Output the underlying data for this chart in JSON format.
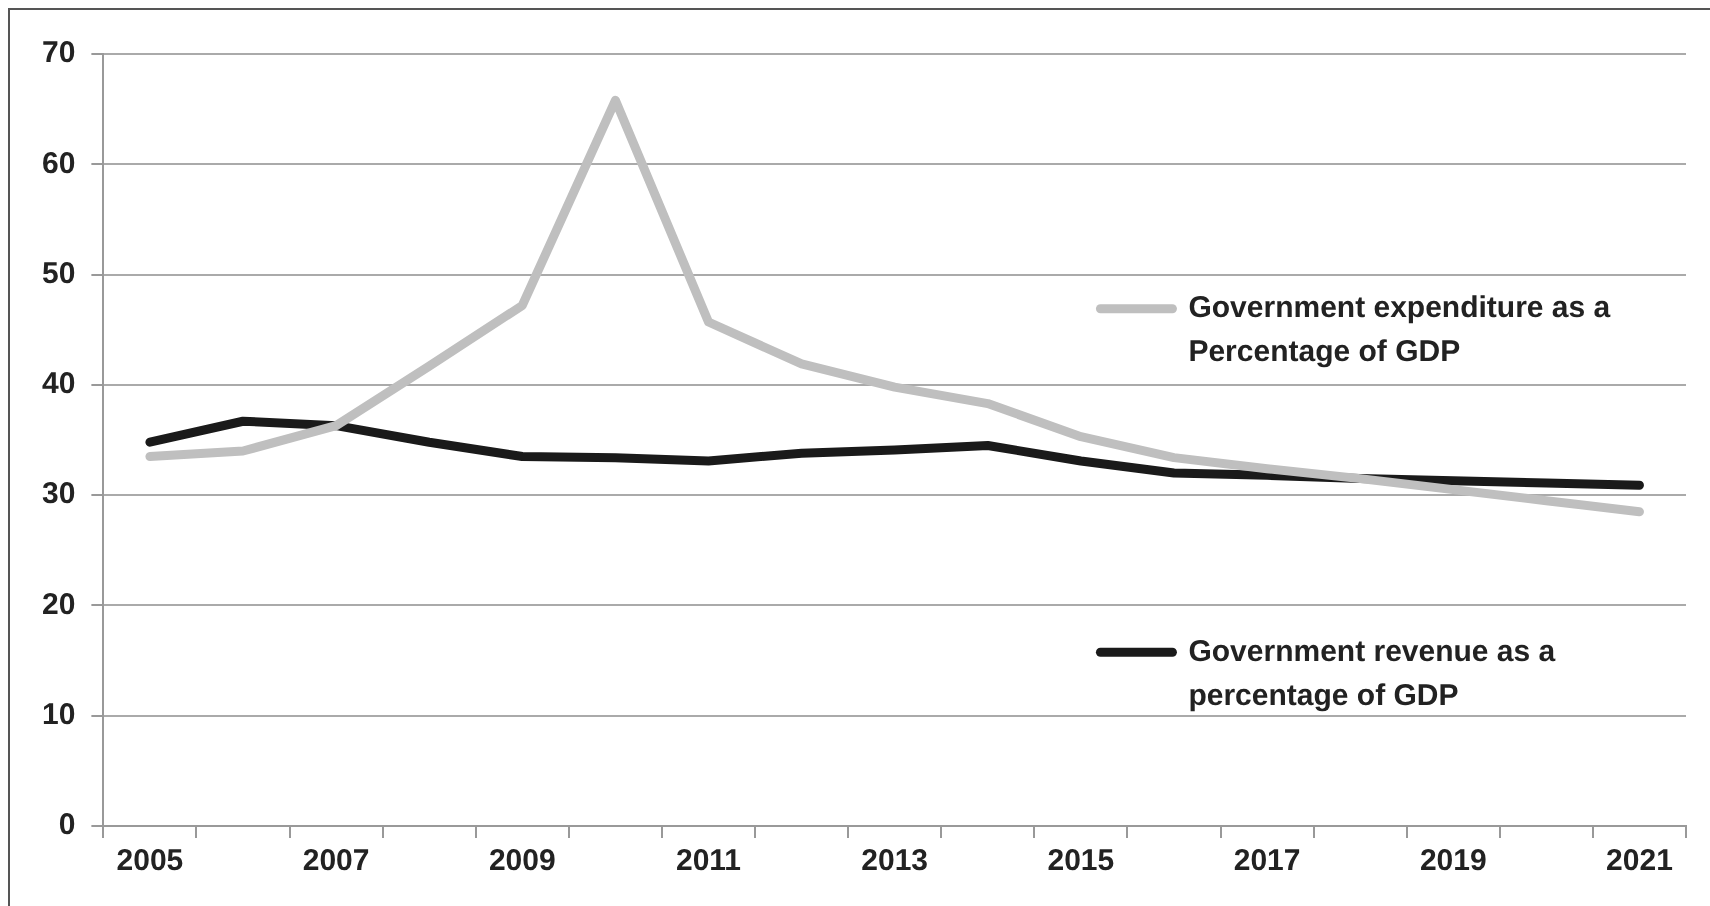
{
  "chart_data": {
    "type": "line",
    "categories": [
      "2005",
      null,
      "2007",
      null,
      "2009",
      null,
      "2011",
      null,
      "2013",
      null,
      "2015",
      null,
      "2017",
      null,
      "2019",
      null,
      "2021"
    ],
    "series": [
      {
        "name": "Government expenditure as a Percentage of GDP",
        "color": "#bfbfbf",
        "values": [
          33.5,
          34.0,
          36.3,
          41.7,
          47.2,
          65.8,
          45.7,
          41.9,
          39.8,
          38.3,
          35.3,
          33.4,
          32.4,
          31.5,
          30.5,
          29.5,
          28.5
        ]
      },
      {
        "name": "Government revenue as a percentage of GDP",
        "color": "#1a1a1a",
        "values": [
          34.8,
          36.7,
          36.3,
          34.8,
          33.5,
          33.4,
          33.1,
          33.8,
          34.1,
          34.5,
          33.1,
          32.0,
          31.8,
          31.5,
          31.3,
          31.1,
          30.9
        ]
      }
    ],
    "ylim": [
      0,
      70
    ],
    "yticks": [
      0,
      10,
      20,
      30,
      40,
      50,
      60,
      70
    ],
    "grid": "y",
    "legend": "right",
    "marker": "none",
    "line_style": "solid"
  }
}
